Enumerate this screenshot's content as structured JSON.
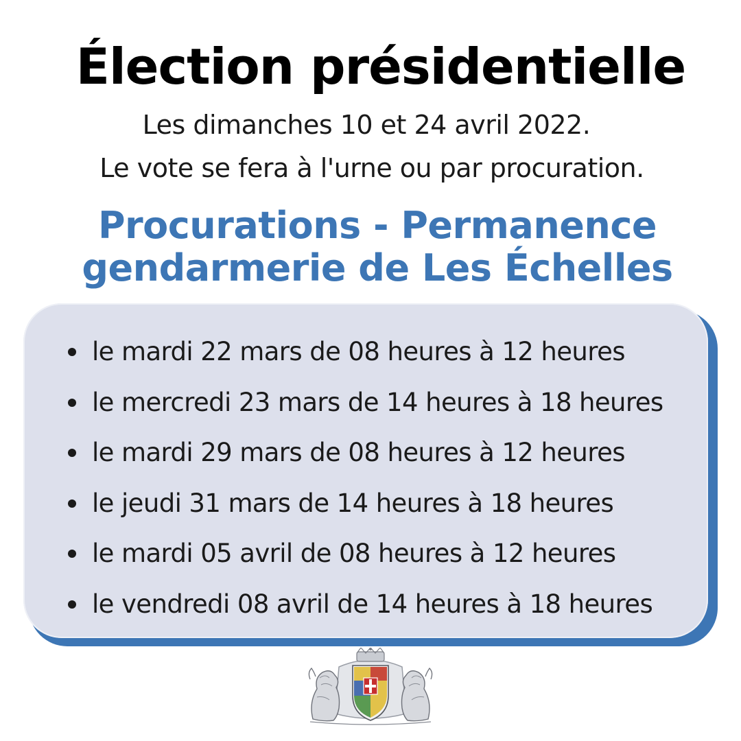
{
  "header": {
    "title": "Élection présidentielle",
    "dates_line": "Les dimanches 10 et 24 avril 2022.",
    "vote_line": "Le vote se fera à l'urne ou par procuration."
  },
  "procurations": {
    "heading_line1": "Procurations - Permanence",
    "heading_line2": "gendarmerie de Les Échelles",
    "accent_color": "#3d76b5",
    "card_color": "#dde0ec",
    "slots": [
      "le mardi 22 mars de 08 heures à 12 heures",
      "le mercredi 23 mars de 14 heures à 18 heures",
      "le mardi 29 mars de 08 heures à 12 heures",
      "le jeudi 31 mars de 14 heures à 18 heures",
      "le mardi 05 avril de 08 heures à 12 heures",
      "le vendredi 08 avril de 14 heures à 18 heures"
    ]
  },
  "footer": {
    "emblem": "coat-of-arms-icon"
  }
}
